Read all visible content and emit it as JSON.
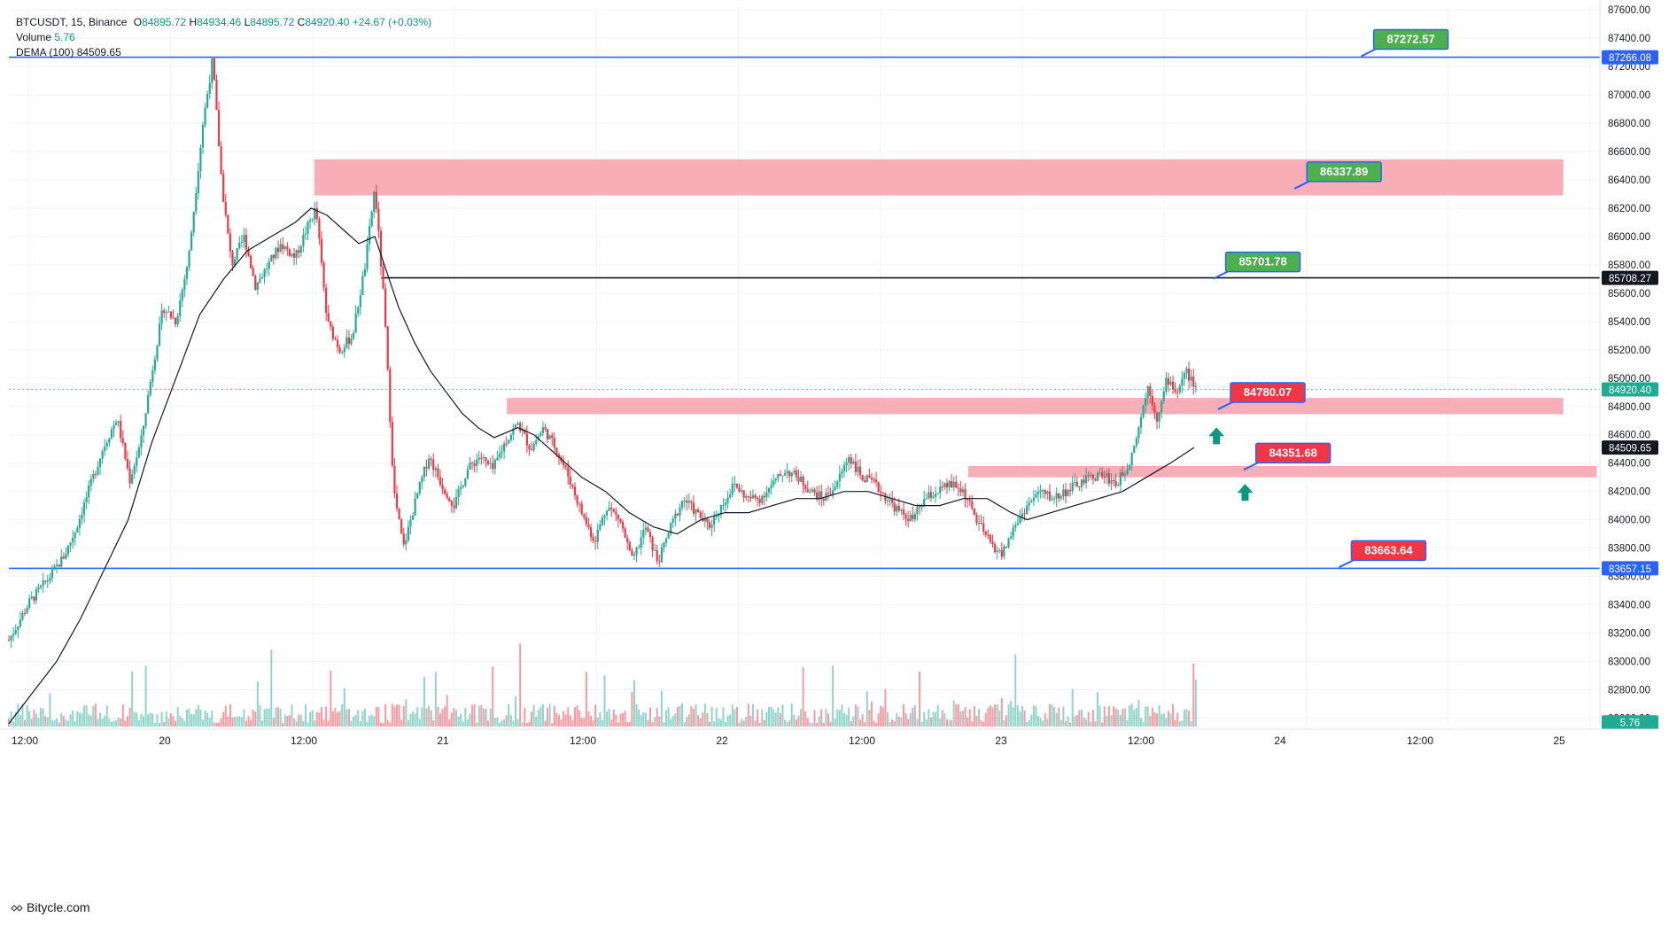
{
  "legend": {
    "symbol": "BTCUSDT, 15, Binance",
    "o_label": "O",
    "o_val": "84895.72",
    "h_label": "H",
    "h_val": "84934.46",
    "l_label": "L",
    "l_val": "84895.72",
    "c_label": "C",
    "c_val": "84920.40",
    "change": "+24.67 (+0.03%)",
    "volume_label": "Volume",
    "volume_val": "5.76",
    "dema_label": "DEMA (100)",
    "dema_val": "84509.65"
  },
  "branding": {
    "text": "Bitycle.com",
    "icon": "bitycle-logo-icon"
  },
  "colors": {
    "up": "#22ab94",
    "down": "#f23645",
    "zone": "#f7a5ae",
    "blue_line": "#2962ff",
    "black_line": "#131722",
    "green_label": "#4caf50",
    "red_label": "#f23645",
    "arrow": "#089981",
    "grid": "#f0f3fa"
  },
  "chart_data": {
    "type": "candlestick",
    "x_ticks": [
      "12:00",
      "20",
      "12:00",
      "21",
      "12:00",
      "22",
      "12:00",
      "23",
      "12:00",
      "24",
      "12:00",
      "25"
    ],
    "y_ticks": [
      "87600.00",
      "87400.00",
      "87200.00",
      "87000.00",
      "86800.00",
      "86600.00",
      "86400.00",
      "86200.00",
      "86000.00",
      "85800.00",
      "85600.00",
      "85400.00",
      "85200.00",
      "85000.00",
      "84800.00",
      "84600.00",
      "84400.00",
      "84200.00",
      "84000.00",
      "83800.00",
      "83600.00",
      "83400.00",
      "83200.00",
      "83000.00",
      "82800.00",
      "82600.00"
    ],
    "ylim": [
      82540,
      87620
    ],
    "x_domain": [
      0,
      100
    ],
    "price_markers": [
      {
        "label": "87266.08",
        "value": 87266.08,
        "color": "#2962ff"
      },
      {
        "label": "85708.27",
        "value": 85708.27,
        "color": "#131722"
      },
      {
        "label": "84920.40",
        "value": 84920.4,
        "color": "#22ab94"
      },
      {
        "label": "84509.65",
        "value": 84509.65,
        "color": "#131722"
      },
      {
        "label": "83657.15",
        "value": 83657.15,
        "color": "#2962ff"
      },
      {
        "label": "5.76",
        "value": 82570,
        "color": "#22ab94"
      }
    ],
    "horizontal_lines": [
      {
        "value": 87266.08,
        "x_start": 0,
        "x_end": 100,
        "color": "#2962ff"
      },
      {
        "value": 83657.15,
        "x_start": 0,
        "x_end": 100,
        "color": "#2962ff"
      },
      {
        "value": 85708.27,
        "x_start": 23.4,
        "x_end": 100,
        "color": "#131722"
      }
    ],
    "zones": [
      {
        "y_top": 86545,
        "y_bottom": 86290,
        "x_start": 19.2,
        "x_end": 97.7
      },
      {
        "y_top": 84860,
        "y_bottom": 84745,
        "x_start": 31.3,
        "x_end": 97.7
      },
      {
        "y_top": 84380,
        "y_bottom": 84300,
        "x_start": 60.3,
        "x_end": 99.8
      }
    ],
    "callouts": [
      {
        "label": "87272.57",
        "value": 87272.57,
        "x": 85.0,
        "color": "#4caf50"
      },
      {
        "label": "86337.89",
        "value": 86337.89,
        "x": 80.8,
        "color": "#4caf50"
      },
      {
        "label": "85701.78",
        "value": 85701.78,
        "x": 75.7,
        "color": "#4caf50"
      },
      {
        "label": "84780.07",
        "value": 84780.07,
        "x": 76.0,
        "color": "#f23645"
      },
      {
        "label": "84351.68",
        "value": 84351.68,
        "x": 77.6,
        "color": "#f23645"
      },
      {
        "label": "83663.64",
        "value": 83663.64,
        "x": 83.6,
        "color": "#f23645"
      }
    ],
    "arrows": [
      {
        "x": 75.9,
        "value": 84590
      },
      {
        "x": 77.7,
        "value": 84190
      }
    ],
    "price_path": [
      [
        0.0,
        83150
      ],
      [
        1.3,
        83420
      ],
      [
        2.6,
        83600
      ],
      [
        3.5,
        83750
      ],
      [
        4.2,
        83930
      ],
      [
        5.0,
        84200
      ],
      [
        5.9,
        84500
      ],
      [
        6.8,
        84720
      ],
      [
        7.6,
        84280
      ],
      [
        8.3,
        84550
      ],
      [
        9.0,
        85050
      ],
      [
        9.7,
        85500
      ],
      [
        10.5,
        85400
      ],
      [
        11.3,
        85850
      ],
      [
        12.2,
        86800
      ],
      [
        12.8,
        87250
      ],
      [
        13.4,
        86350
      ],
      [
        14.0,
        85800
      ],
      [
        14.8,
        86000
      ],
      [
        15.5,
        85650
      ],
      [
        16.3,
        85800
      ],
      [
        17.1,
        85950
      ],
      [
        18.0,
        85850
      ],
      [
        18.7,
        86050
      ],
      [
        19.3,
        86200
      ],
      [
        20.0,
        85400
      ],
      [
        20.8,
        85200
      ],
      [
        21.6,
        85300
      ],
      [
        22.4,
        85800
      ],
      [
        23.0,
        86350
      ],
      [
        23.6,
        85500
      ],
      [
        24.2,
        84200
      ],
      [
        24.8,
        83800
      ],
      [
        25.6,
        84150
      ],
      [
        26.4,
        84450
      ],
      [
        27.2,
        84250
      ],
      [
        28.0,
        84100
      ],
      [
        28.8,
        84350
      ],
      [
        29.6,
        84450
      ],
      [
        30.4,
        84350
      ],
      [
        31.2,
        84550
      ],
      [
        32.0,
        84680
      ],
      [
        32.8,
        84500
      ],
      [
        33.6,
        84650
      ],
      [
        34.4,
        84500
      ],
      [
        35.2,
        84300
      ],
      [
        36.0,
        84050
      ],
      [
        36.8,
        83850
      ],
      [
        37.6,
        84100
      ],
      [
        38.4,
        84000
      ],
      [
        39.2,
        83700
      ],
      [
        40.0,
        83950
      ],
      [
        40.8,
        83700
      ],
      [
        41.6,
        83950
      ],
      [
        42.4,
        84150
      ],
      [
        43.2,
        84050
      ],
      [
        44.0,
        83950
      ],
      [
        44.8,
        84100
      ],
      [
        45.6,
        84250
      ],
      [
        46.4,
        84150
      ],
      [
        47.2,
        84150
      ],
      [
        48.0,
        84250
      ],
      [
        48.8,
        84350
      ],
      [
        49.6,
        84300
      ],
      [
        50.4,
        84200
      ],
      [
        51.2,
        84150
      ],
      [
        52.0,
        84250
      ],
      [
        52.8,
        84450
      ],
      [
        53.6,
        84300
      ],
      [
        54.4,
        84250
      ],
      [
        55.2,
        84150
      ],
      [
        56.0,
        84050
      ],
      [
        56.8,
        84000
      ],
      [
        57.6,
        84150
      ],
      [
        58.4,
        84200
      ],
      [
        59.2,
        84250
      ],
      [
        60.0,
        84200
      ],
      [
        60.8,
        84000
      ],
      [
        61.6,
        83850
      ],
      [
        62.4,
        83750
      ],
      [
        63.2,
        83950
      ],
      [
        64.0,
        84100
      ],
      [
        64.8,
        84200
      ],
      [
        65.6,
        84150
      ],
      [
        66.4,
        84200
      ],
      [
        67.2,
        84250
      ],
      [
        68.0,
        84300
      ],
      [
        68.8,
        84320
      ],
      [
        69.6,
        84250
      ],
      [
        70.4,
        84400
      ],
      [
        71.0,
        84650
      ],
      [
        71.6,
        84950
      ],
      [
        72.2,
        84700
      ],
      [
        72.8,
        85000
      ],
      [
        73.4,
        84900
      ],
      [
        74.0,
        85050
      ],
      [
        74.6,
        84920
      ]
    ],
    "dema_path": [
      [
        0.0,
        82560
      ],
      [
        1.5,
        82780
      ],
      [
        3.0,
        83000
      ],
      [
        4.5,
        83300
      ],
      [
        6.0,
        83650
      ],
      [
        7.5,
        84000
      ],
      [
        9.0,
        84550
      ],
      [
        10.5,
        85000
      ],
      [
        12.0,
        85450
      ],
      [
        13.5,
        85700
      ],
      [
        15.0,
        85900
      ],
      [
        16.5,
        86000
      ],
      [
        18.0,
        86100
      ],
      [
        19.0,
        86200
      ],
      [
        20.0,
        86150
      ],
      [
        21.0,
        86050
      ],
      [
        22.0,
        85950
      ],
      [
        23.0,
        86000
      ],
      [
        23.6,
        85800
      ],
      [
        24.5,
        85500
      ],
      [
        25.5,
        85250
      ],
      [
        26.5,
        85050
      ],
      [
        27.5,
        84900
      ],
      [
        28.5,
        84750
      ],
      [
        29.5,
        84650
      ],
      [
        30.5,
        84580
      ],
      [
        32.0,
        84650
      ],
      [
        33.0,
        84600
      ],
      [
        34.5,
        84450
      ],
      [
        36.0,
        84300
      ],
      [
        37.5,
        84200
      ],
      [
        39.0,
        84050
      ],
      [
        40.5,
        83950
      ],
      [
        42.0,
        83900
      ],
      [
        43.5,
        84000
      ],
      [
        45.0,
        84050
      ],
      [
        46.5,
        84050
      ],
      [
        48.0,
        84100
      ],
      [
        49.5,
        84150
      ],
      [
        51.0,
        84150
      ],
      [
        52.5,
        84200
      ],
      [
        54.0,
        84200
      ],
      [
        55.5,
        84150
      ],
      [
        57.0,
        84100
      ],
      [
        58.5,
        84100
      ],
      [
        60.0,
        84150
      ],
      [
        61.5,
        84150
      ],
      [
        63.0,
        84050
      ],
      [
        64.0,
        84000
      ],
      [
        65.5,
        84050
      ],
      [
        67.0,
        84100
      ],
      [
        68.5,
        84150
      ],
      [
        70.0,
        84200
      ],
      [
        71.5,
        84300
      ],
      [
        73.0,
        84400
      ],
      [
        74.5,
        84510
      ]
    ]
  }
}
